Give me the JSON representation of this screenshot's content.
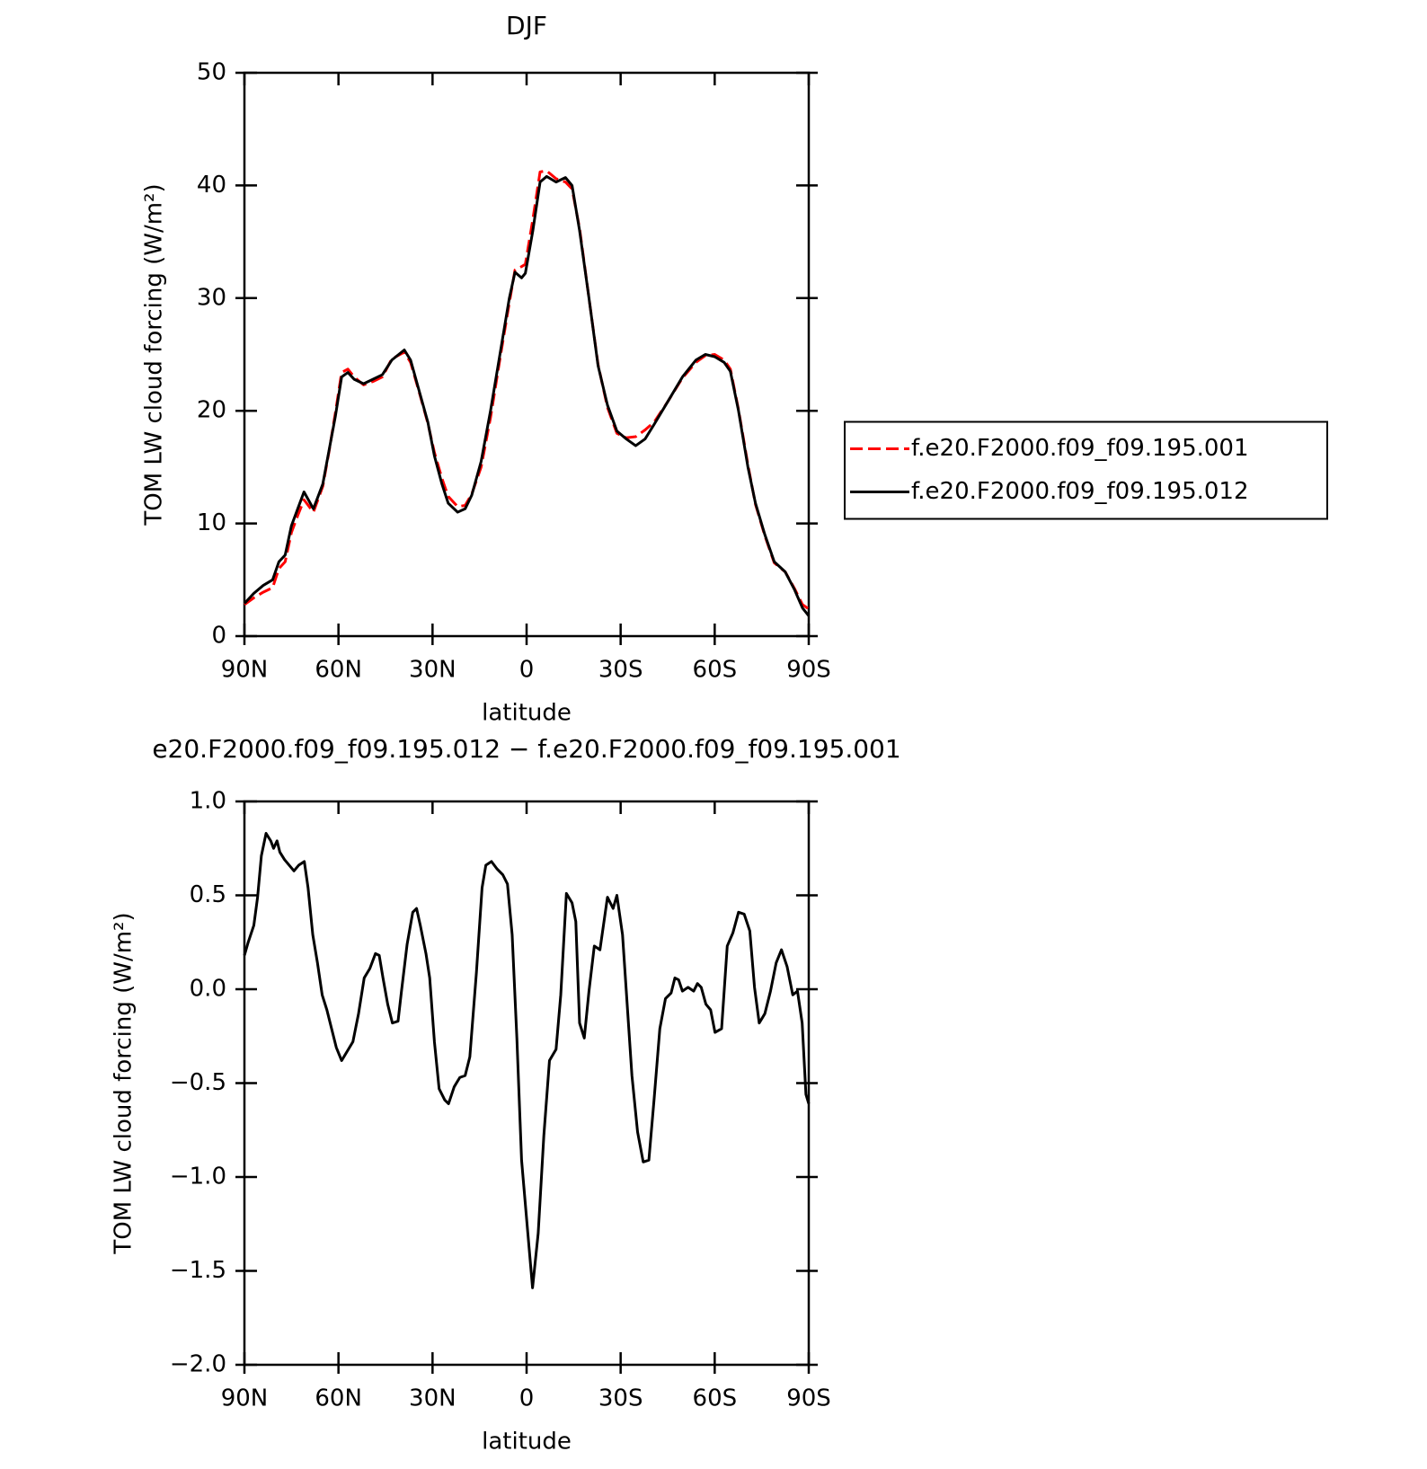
{
  "chart_data": [
    {
      "type": "line",
      "title": "DJF",
      "x_label": "latitude",
      "y_label": "TOM LW cloud forcing (W/m²)",
      "xlim": [
        90,
        -90
      ],
      "ylim": [
        0,
        50
      ],
      "xticks": [
        {
          "value": 90,
          "label": "90N"
        },
        {
          "value": 60,
          "label": "60N"
        },
        {
          "value": 30,
          "label": "30N"
        },
        0,
        {
          "value": -30,
          "label": "30S"
        },
        {
          "value": -60,
          "label": "60S"
        },
        {
          "value": -90,
          "label": "90S"
        }
      ],
      "yticks": [
        0,
        10,
        20,
        30,
        40,
        50
      ],
      "legend": "right",
      "x": [
        90,
        87,
        84,
        81,
        79,
        77,
        75,
        73,
        71,
        68,
        65,
        63,
        61,
        59,
        57,
        55,
        52,
        49,
        46,
        43,
        39,
        37,
        34,
        31.5,
        29.4,
        27,
        25,
        22,
        19.6,
        17.5,
        14.5,
        11.5,
        8.5,
        5.5,
        3.7,
        1.6,
        0.4,
        -2,
        -4.3,
        -6.4,
        -9.4,
        -12.4,
        -14.5,
        -16.9,
        -19.9,
        -22.8,
        -25.8,
        -28.8,
        -31.8,
        -34.8,
        -37.8,
        -40.7,
        -45,
        -49.7,
        -54,
        -57,
        -60,
        -63,
        -65,
        -67.6,
        -70.6,
        -73,
        -76,
        -79,
        -82.5,
        -85.5,
        -88,
        -90
      ],
      "series": [
        {
          "name": "f.e20.F2000.f09_f09.195.001",
          "color": "#ff0000",
          "style": "dashed",
          "values": [
            2.8,
            3.4,
            3.9,
            4.3,
            6.0,
            6.6,
            9.2,
            10.7,
            12.1,
            11.0,
            13.3,
            16.4,
            19.8,
            23.4,
            23.7,
            23.0,
            22.3,
            22.6,
            23.0,
            24.6,
            25.2,
            24.3,
            21.4,
            18.9,
            16.3,
            14.0,
            12.4,
            11.5,
            11.6,
            12.6,
            15.0,
            19.4,
            24.6,
            29.6,
            32.5,
            32.8,
            33.0,
            37.0,
            41.2,
            41.3,
            40.6,
            40.3,
            39.7,
            36.2,
            30.0,
            24.1,
            20.3,
            18.0,
            17.6,
            17.7,
            18.3,
            19.0,
            20.8,
            22.9,
            24.3,
            24.9,
            25.0,
            24.5,
            23.7,
            20.1,
            15.2,
            11.7,
            8.9,
            6.5,
            5.7,
            4.2,
            2.8,
            2.4
          ]
        },
        {
          "name": "f.e20.F2000.f09_f09.195.012",
          "color": "#000000",
          "style": "solid",
          "values": [
            2.9,
            3.8,
            4.5,
            5.0,
            6.6,
            7.2,
            9.8,
            11.3,
            12.8,
            11.3,
            13.5,
            16.5,
            19.5,
            23.0,
            23.4,
            22.8,
            22.4,
            22.8,
            23.2,
            24.5,
            25.4,
            24.5,
            21.5,
            19.0,
            16.0,
            13.5,
            11.8,
            11.0,
            11.3,
            12.5,
            15.5,
            20.0,
            25.0,
            30.0,
            32.3,
            31.8,
            32.2,
            36.0,
            40.3,
            40.8,
            40.3,
            40.7,
            40.0,
            36.0,
            30.0,
            24.0,
            20.5,
            18.2,
            17.5,
            16.9,
            17.5,
            18.8,
            20.8,
            23.0,
            24.5,
            25.0,
            24.8,
            24.3,
            23.5,
            20.0,
            15.0,
            11.8,
            9.0,
            6.6,
            5.7,
            4.1,
            2.5,
            1.8
          ]
        }
      ]
    },
    {
      "type": "line",
      "title": "e20.F2000.f09_f09.195.012 − f.e20.F2000.f09_f09.195.001",
      "x_label": "latitude",
      "y_label": "TOM LW cloud forcing (W/m²)",
      "xlim": [
        90,
        -90
      ],
      "ylim": [
        -2,
        1
      ],
      "xticks": [
        {
          "value": 90,
          "label": "90N"
        },
        {
          "value": 60,
          "label": "60N"
        },
        {
          "value": 30,
          "label": "30N"
        },
        0,
        {
          "value": -30,
          "label": "30S"
        },
        {
          "value": -60,
          "label": "60S"
        },
        {
          "value": -90,
          "label": "90S"
        }
      ],
      "yticks": [
        {
          "value": -2,
          "label": "−2.0"
        },
        {
          "value": -1.5,
          "label": "−1.5"
        },
        {
          "value": -1,
          "label": "−1.0"
        },
        {
          "value": -0.5,
          "label": "−0.5"
        },
        {
          "value": 0,
          "label": "0.0"
        },
        0.5,
        {
          "value": 1,
          "label": "1.0"
        }
      ],
      "x": [
        90,
        88.8,
        87.0,
        85.8,
        84.6,
        83.1,
        81.6,
        80.7,
        79.6,
        78.7,
        77.2,
        75.7,
        74.2,
        72.7,
        70.9,
        69.7,
        68.2,
        66.7,
        65.2,
        63.7,
        62.2,
        60.7,
        59.0,
        57.2,
        55.4,
        53.6,
        51.8,
        50.0,
        48.2,
        47.0,
        45.8,
        44.3,
        42.8,
        41.0,
        39.9,
        38.1,
        36.3,
        35.1,
        33.9,
        32.1,
        30.9,
        29.4,
        27.9,
        26.1,
        24.9,
        23.1,
        21.3,
        19.6,
        18.1,
        16.0,
        14.2,
        13.0,
        11.2,
        9.4,
        7.6,
        6.1,
        4.6,
        3.1,
        1.6,
        -0.4,
        -1.9,
        -3.7,
        -5.5,
        -7.3,
        -9.4,
        -10.9,
        -12.7,
        -14.5,
        -15.7,
        -16.9,
        -18.4,
        -19.9,
        -21.6,
        -23.4,
        -25.8,
        -27.6,
        -28.8,
        -30.6,
        -31.8,
        -33.6,
        -35.4,
        -37.2,
        -39.0,
        -40.7,
        -42.5,
        -44.3,
        -46.1,
        -47.3,
        -48.5,
        -49.7,
        -51.5,
        -53.3,
        -54.5,
        -55.7,
        -57.2,
        -58.7,
        -60.1,
        -62.2,
        -64.0,
        -65.8,
        -67.6,
        -69.4,
        -71.2,
        -72.7,
        -74.2,
        -76.0,
        -77.8,
        -79.6,
        -81.3,
        -83.1,
        -84.9,
        -86.4,
        -87.9,
        -89.1,
        -90
      ],
      "series": [
        {
          "color": "#000000",
          "style": "solid",
          "values": [
            0.18,
            0.25,
            0.34,
            0.49,
            0.71,
            0.83,
            0.79,
            0.75,
            0.79,
            0.73,
            0.69,
            0.66,
            0.63,
            0.66,
            0.68,
            0.54,
            0.29,
            0.14,
            -0.03,
            -0.11,
            -0.21,
            -0.31,
            -0.38,
            -0.33,
            -0.28,
            -0.13,
            0.06,
            0.11,
            0.19,
            0.18,
            0.06,
            -0.08,
            -0.18,
            -0.17,
            -0.01,
            0.24,
            0.41,
            0.43,
            0.34,
            0.19,
            0.06,
            -0.28,
            -0.53,
            -0.59,
            -0.61,
            -0.52,
            -0.47,
            -0.46,
            -0.36,
            0.09,
            0.54,
            0.66,
            0.68,
            0.64,
            0.61,
            0.56,
            0.29,
            -0.26,
            -0.91,
            -1.3,
            -1.59,
            -1.3,
            -0.78,
            -0.38,
            -0.32,
            -0.03,
            0.51,
            0.46,
            0.36,
            -0.18,
            -0.26,
            -0.01,
            0.23,
            0.21,
            0.49,
            0.43,
            0.5,
            0.29,
            -0.01,
            -0.46,
            -0.76,
            -0.92,
            -0.91,
            -0.58,
            -0.21,
            -0.05,
            -0.02,
            0.06,
            0.05,
            -0.01,
            0.01,
            -0.01,
            0.03,
            0.01,
            -0.08,
            -0.11,
            -0.23,
            -0.21,
            0.23,
            0.3,
            0.41,
            0.4,
            0.31,
            0.01,
            -0.18,
            -0.13,
            -0.01,
            0.14,
            0.21,
            0.12,
            -0.03,
            -0.01,
            -0.18,
            -0.56,
            -0.61
          ]
        }
      ]
    }
  ]
}
